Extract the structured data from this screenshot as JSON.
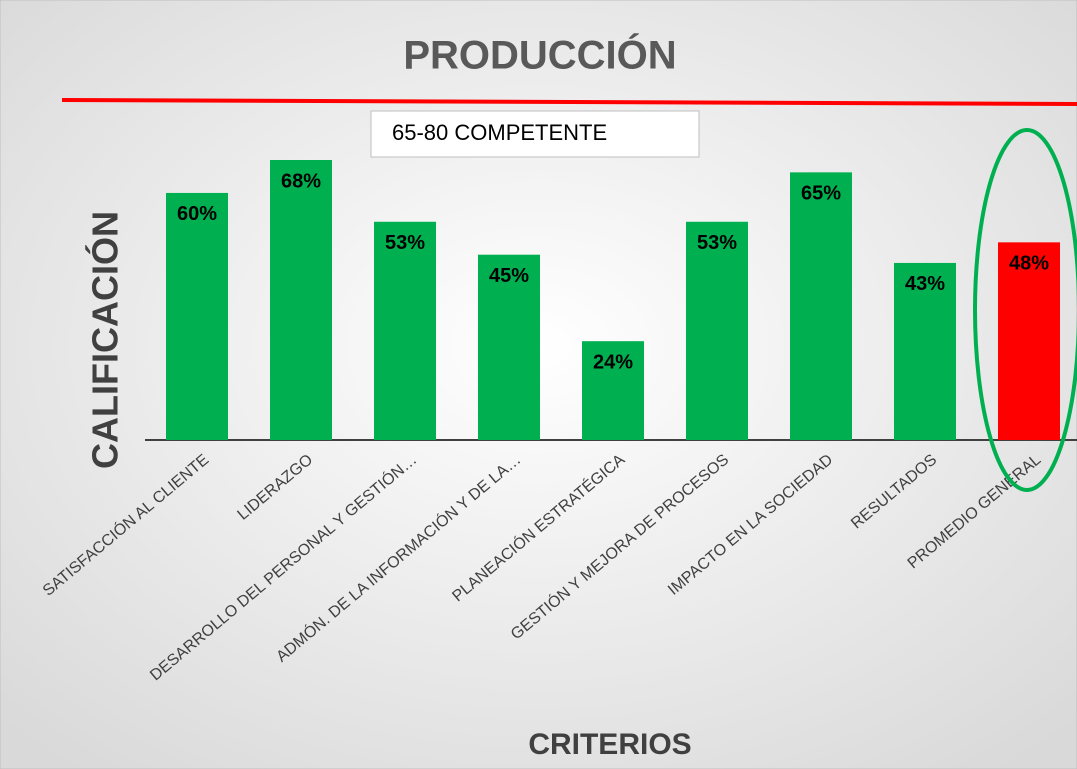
{
  "chart_data": {
    "type": "bar",
    "title": "PRODUCCIÓN",
    "annotation": "65-80 COMPETENTE",
    "y_label": "CALIFICACIÓN",
    "x_label": "CRITERIOS",
    "categories": [
      "SATISFACCIÓN AL CLIENTE",
      "LIDERAZGO",
      "DESARROLLO DEL PERSONAL Y GESTIÓN…",
      "ADMÓN. DE LA INFORMACIÓN Y DE LA…",
      "PLANEACIÓN ESTRATÉGICA",
      "GESTIÓN Y MEJORA DE PROCESOS",
      "IMPACTO EN LA SOCIEDAD",
      "RESULTADOS",
      "PROMEDIO GENERAL"
    ],
    "values": [
      60,
      68,
      53,
      45,
      24,
      53,
      65,
      43,
      48
    ],
    "value_labels": [
      "60%",
      "68%",
      "53%",
      "45%",
      "24%",
      "53%",
      "65%",
      "43%",
      "48%"
    ],
    "colors": [
      "#00b050",
      "#00b050",
      "#00b050",
      "#00b050",
      "#00b050",
      "#00b050",
      "#00b050",
      "#00b050",
      "#ff0000"
    ]
  }
}
